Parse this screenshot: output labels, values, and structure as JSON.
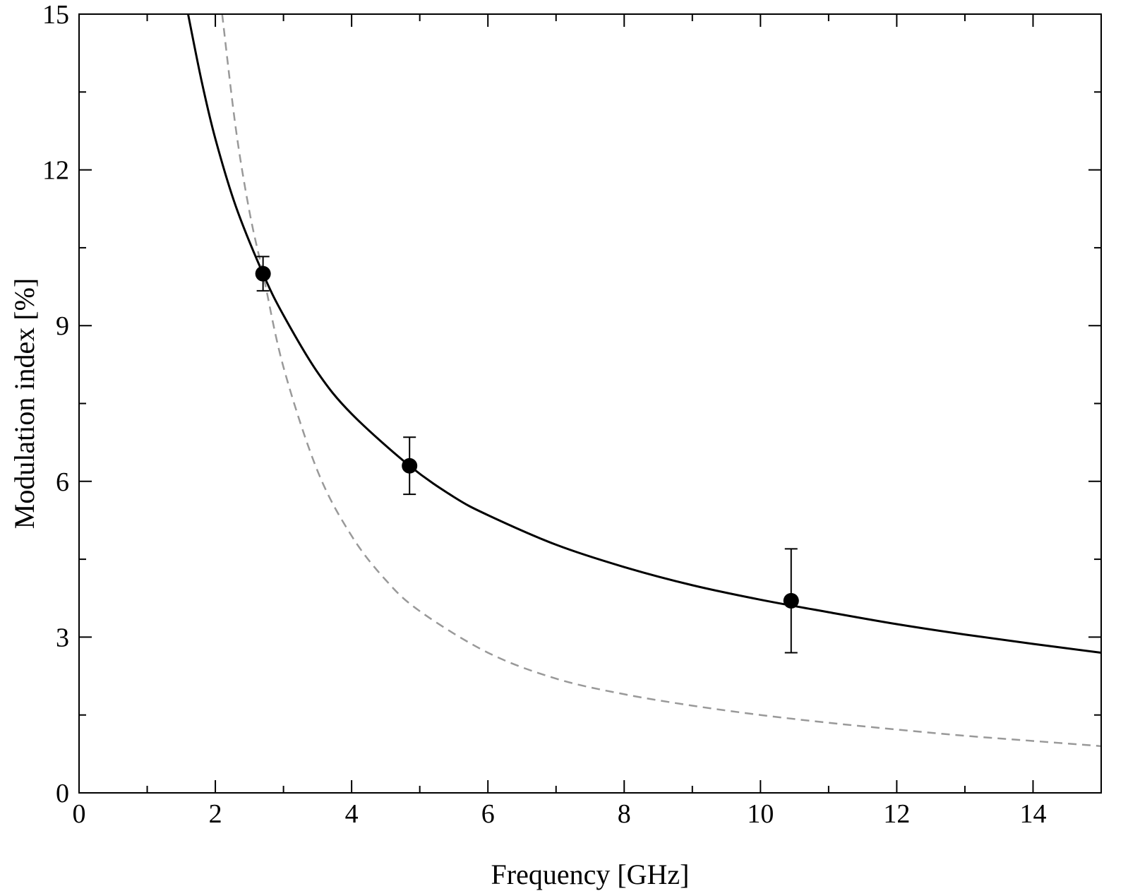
{
  "chart_data": {
    "type": "scatter",
    "title": "",
    "xlabel": "Frequency [GHz]",
    "ylabel": "Modulation index [%]",
    "xlim": [
      0,
      15
    ],
    "ylim": [
      0,
      15
    ],
    "x_ticks_major": [
      0,
      2,
      4,
      6,
      8,
      10,
      12,
      14
    ],
    "x_tick_labels": [
      "0",
      "2",
      "4",
      "6",
      "8",
      "10",
      "12",
      "14"
    ],
    "x_ticks_minor": [
      1,
      3,
      5,
      7,
      9,
      11,
      13,
      15
    ],
    "y_ticks_major": [
      0,
      3,
      6,
      9,
      12,
      15
    ],
    "y_tick_labels": [
      "0",
      "3",
      "6",
      "9",
      "12",
      "15"
    ],
    "y_ticks_minor": [
      1.5,
      4.5,
      7.5,
      10.5,
      13.5
    ],
    "grid": false,
    "legend": "none",
    "points": [
      {
        "x": 2.7,
        "y": 10.0,
        "yerr": 0.33
      },
      {
        "x": 4.85,
        "y": 6.3,
        "yerr": 0.55
      },
      {
        "x": 10.45,
        "y": 3.7,
        "yerr": 1.0
      }
    ],
    "curves": [
      {
        "style": "solid",
        "color": "#000000",
        "x": [
          1.6,
          1.8,
          2.0,
          2.3,
          2.7,
          3.0,
          3.5,
          4.0,
          4.85,
          5.5,
          6.0,
          7.0,
          8.0,
          9.0,
          10.0,
          11.0,
          12.0,
          13.0,
          14.0,
          15.0
        ],
        "y": [
          15.0,
          13.7,
          12.6,
          11.3,
          10.0,
          9.2,
          8.1,
          7.3,
          6.3,
          5.7,
          5.35,
          4.78,
          4.35,
          4.0,
          3.72,
          3.48,
          3.25,
          3.05,
          2.87,
          2.7
        ]
      },
      {
        "style": "dashed",
        "color": "#999999",
        "x": [
          2.1,
          2.3,
          2.5,
          2.7,
          3.0,
          3.5,
          4.0,
          4.5,
          5.0,
          6.0,
          7.0,
          8.0,
          9.0,
          10.0,
          11.0,
          12.0,
          13.0,
          14.0,
          15.0
        ],
        "y": [
          15.0,
          12.8,
          11.2,
          10.0,
          8.2,
          6.2,
          4.95,
          4.1,
          3.5,
          2.7,
          2.2,
          1.9,
          1.68,
          1.5,
          1.35,
          1.22,
          1.1,
          1.0,
          0.9
        ]
      }
    ]
  }
}
